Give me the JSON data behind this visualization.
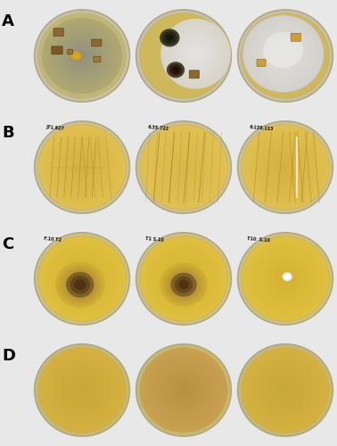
{
  "figsize": [
    3.78,
    5.0
  ],
  "dpi": 100,
  "background_color": "#e8e8e8",
  "rows": 4,
  "cols": 3,
  "row_labels": [
    "A",
    "B",
    "C",
    "D"
  ],
  "row_label_fontsize": 13,
  "row_label_fontweight": "bold",
  "row_label_color": "#000000",
  "panel_bg_rows": [
    "#c8c0b0",
    "#c8c0b0",
    "#c8c0b0",
    "#b8b0a0"
  ],
  "plate_outer_color": "#d0c8b0",
  "plate_agar_A": [
    "#b0a880",
    "#c8b878",
    "#c8b878"
  ],
  "plate_agar_B": [
    "#d4b850",
    "#d4b850",
    "#d4b850"
  ],
  "plate_agar_C": [
    "#d4b840",
    "#d4b840",
    "#d4b840"
  ],
  "plate_agar_D": [
    "#c8aa40",
    "#c0a050",
    "#c8aa40"
  ],
  "label_texts_B": [
    "J71.627",
    "6.35.722",
    "6.135.113"
  ],
  "label_texts_C": [
    "F.10 T2",
    "T1 S.10",
    "T10  S.10"
  ],
  "row_separators": true
}
